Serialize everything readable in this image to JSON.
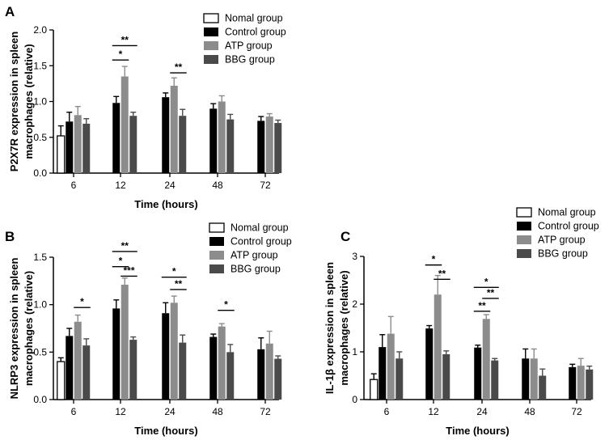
{
  "colors": {
    "normal": "#ffffff",
    "control": "#000000",
    "atp": "#8c8c8c",
    "bbg": "#4a4a4a",
    "stroke": "#000000"
  },
  "chart_data": [
    {
      "panel": "A",
      "type": "bar",
      "xlabel": "Time (hours)",
      "ylabel": "P2X7R expression in spleen macrophages (relative)",
      "ylabel_lines": [
        "P2X7R expression in spleen",
        "macrophages (relative)"
      ],
      "ylim": [
        0,
        2.0
      ],
      "yticks": [
        0.0,
        0.5,
        1.0,
        1.5,
        2.0
      ],
      "ytick_labels": [
        "0.0",
        "0.5",
        "1.0",
        "1.5",
        "2.0"
      ],
      "categories": [
        "6",
        "12",
        "24",
        "48",
        "72"
      ],
      "series": [
        {
          "name": "Nomal group",
          "values": [
            0.52,
            null,
            null,
            null,
            null
          ],
          "errors": [
            0.14,
            null,
            null,
            null,
            null
          ]
        },
        {
          "name": "Control group",
          "values": [
            0.72,
            0.98,
            1.06,
            0.9,
            0.73
          ],
          "errors": [
            0.13,
            0.09,
            0.06,
            0.07,
            0.06
          ]
        },
        {
          "name": "ATP group",
          "values": [
            0.81,
            1.35,
            1.22,
            1.0,
            0.79
          ],
          "errors": [
            0.12,
            0.14,
            0.11,
            0.08,
            0.04
          ]
        },
        {
          "name": "BBG group",
          "values": [
            0.69,
            0.8,
            0.8,
            0.75,
            0.7
          ],
          "errors": [
            0.07,
            0.05,
            0.09,
            0.07,
            0.04
          ]
        }
      ],
      "significance": [
        {
          "category": 1,
          "from": 1,
          "to": 2,
          "y": 1.58,
          "label": "*"
        },
        {
          "category": 1,
          "from": 1,
          "to": 3,
          "y": 1.78,
          "label": "**"
        },
        {
          "category": 2,
          "from": 2,
          "to": 3,
          "y": 1.4,
          "label": "**"
        }
      ]
    },
    {
      "panel": "B",
      "type": "bar",
      "xlabel": "Time (hours)",
      "ylabel": "NLRP3 expression in spleen macrophages (relative)",
      "ylabel_lines": [
        "NLRP3 expression in spleen",
        "macrophages (relative)"
      ],
      "ylim": [
        0,
        1.5
      ],
      "yticks": [
        0.0,
        0.5,
        1.0,
        1.5
      ],
      "ytick_labels": [
        "0.0",
        "0.5",
        "1.0",
        "1.5"
      ],
      "categories": [
        "6",
        "12",
        "24",
        "48",
        "72"
      ],
      "series": [
        {
          "name": "Nomal group",
          "values": [
            0.4,
            null,
            null,
            null,
            null
          ],
          "errors": [
            0.04,
            null,
            null,
            null,
            null
          ]
        },
        {
          "name": "Control group",
          "values": [
            0.67,
            0.96,
            0.91,
            0.66,
            0.53
          ],
          "errors": [
            0.08,
            0.09,
            0.11,
            0.03,
            0.12
          ]
        },
        {
          "name": "ATP group",
          "values": [
            0.82,
            1.21,
            1.02,
            0.77,
            0.59
          ],
          "errors": [
            0.07,
            0.07,
            0.07,
            0.03,
            0.13
          ]
        },
        {
          "name": "BBG group",
          "values": [
            0.57,
            0.63,
            0.6,
            0.5,
            0.43
          ],
          "errors": [
            0.07,
            0.03,
            0.08,
            0.08,
            0.03
          ]
        }
      ],
      "significance": [
        {
          "category": 0,
          "from": 2,
          "to": 3,
          "y": 0.97,
          "label": "*"
        },
        {
          "category": 1,
          "from": 1,
          "to": 2,
          "y": 1.4,
          "label": "*"
        },
        {
          "category": 1,
          "from": 2,
          "to": 3,
          "y": 1.3,
          "label": "***"
        },
        {
          "category": 1,
          "from": 1,
          "to": 3,
          "y": 1.56,
          "label": "**"
        },
        {
          "category": 2,
          "from": 1,
          "to": 3,
          "y": 1.29,
          "label": "*"
        },
        {
          "category": 2,
          "from": 2,
          "to": 3,
          "y": 1.16,
          "label": "**"
        },
        {
          "category": 3,
          "from": 2,
          "to": 3,
          "y": 0.94,
          "label": "*"
        }
      ]
    },
    {
      "panel": "C",
      "type": "bar",
      "xlabel": "Time (hours)",
      "ylabel": "IL-1β expression in spleen macrophages (relative)",
      "ylabel_lines": [
        "IL-1β expression in spleen",
        "macrophages (relative)"
      ],
      "ylim": [
        0,
        3
      ],
      "yticks": [
        0,
        1,
        2,
        3
      ],
      "ytick_labels": [
        "0",
        "1",
        "2",
        "3"
      ],
      "categories": [
        "6",
        "12",
        "24",
        "48",
        "72"
      ],
      "series": [
        {
          "name": "Nomal group",
          "values": [
            0.42,
            null,
            null,
            null,
            null
          ],
          "errors": [
            0.12,
            null,
            null,
            null,
            null
          ]
        },
        {
          "name": "Control group",
          "values": [
            1.1,
            1.49,
            1.09,
            0.86,
            0.68
          ],
          "errors": [
            0.26,
            0.06,
            0.05,
            0.2,
            0.06
          ]
        },
        {
          "name": "ATP group",
          "values": [
            1.38,
            2.2,
            1.69,
            0.86,
            0.71
          ],
          "errors": [
            0.36,
            0.4,
            0.09,
            0.2,
            0.15
          ]
        },
        {
          "name": "BBG group",
          "values": [
            0.86,
            0.95,
            0.82,
            0.5,
            0.63
          ],
          "errors": [
            0.14,
            0.07,
            0.04,
            0.14,
            0.07
          ]
        }
      ],
      "significance": [
        {
          "category": 1,
          "from": 1,
          "to": 2,
          "y": 2.82,
          "label": "*"
        },
        {
          "category": 1,
          "from": 2,
          "to": 3,
          "y": 2.52,
          "label": "**"
        },
        {
          "category": 2,
          "from": 1,
          "to": 3,
          "y": 2.35,
          "label": "*"
        },
        {
          "category": 2,
          "from": 2,
          "to": 3,
          "y": 2.12,
          "label": "**"
        },
        {
          "category": 2,
          "from": 1,
          "to": 2,
          "y": 1.85,
          "label": "**"
        }
      ]
    }
  ]
}
